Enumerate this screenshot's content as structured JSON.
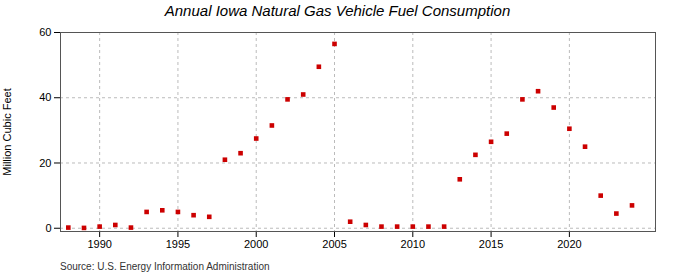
{
  "chart_data": {
    "type": "scatter",
    "title": "Annual Iowa Natural Gas Vehicle Fuel Consumption",
    "ylabel": "Million Cubic Feet",
    "source": "Source: U.S. Energy Information Administration",
    "color": "#cc0000",
    "marker": "square",
    "x": [
      1988,
      1989,
      1990,
      1991,
      1992,
      1993,
      1994,
      1995,
      1996,
      1997,
      1998,
      1999,
      2000,
      2001,
      2002,
      2003,
      2004,
      2005,
      2006,
      2007,
      2008,
      2009,
      2010,
      2011,
      2012,
      2013,
      2014,
      2015,
      2016,
      2017,
      2018,
      2019,
      2020,
      2021,
      2022,
      2023,
      2024
    ],
    "values": [
      0.2,
      0.1,
      0.5,
      1.0,
      0.2,
      5.0,
      5.5,
      5.0,
      4.0,
      3.5,
      21.0,
      23.0,
      27.5,
      31.5,
      39.5,
      41.0,
      49.5,
      56.5,
      2.0,
      1.0,
      0.5,
      0.5,
      0.5,
      0.5,
      0.5,
      15.0,
      22.5,
      26.5,
      29.0,
      39.5,
      42.0,
      37.0,
      30.5,
      25.0,
      10.0,
      4.5,
      7.0
    ],
    "xlim": [
      1987.5,
      2025.5
    ],
    "ylim": [
      -1,
      60
    ],
    "xticks": [
      1990,
      1995,
      2000,
      2005,
      2010,
      2015,
      2020
    ],
    "yticks": [
      0,
      20,
      40,
      60
    ],
    "grid": true
  }
}
